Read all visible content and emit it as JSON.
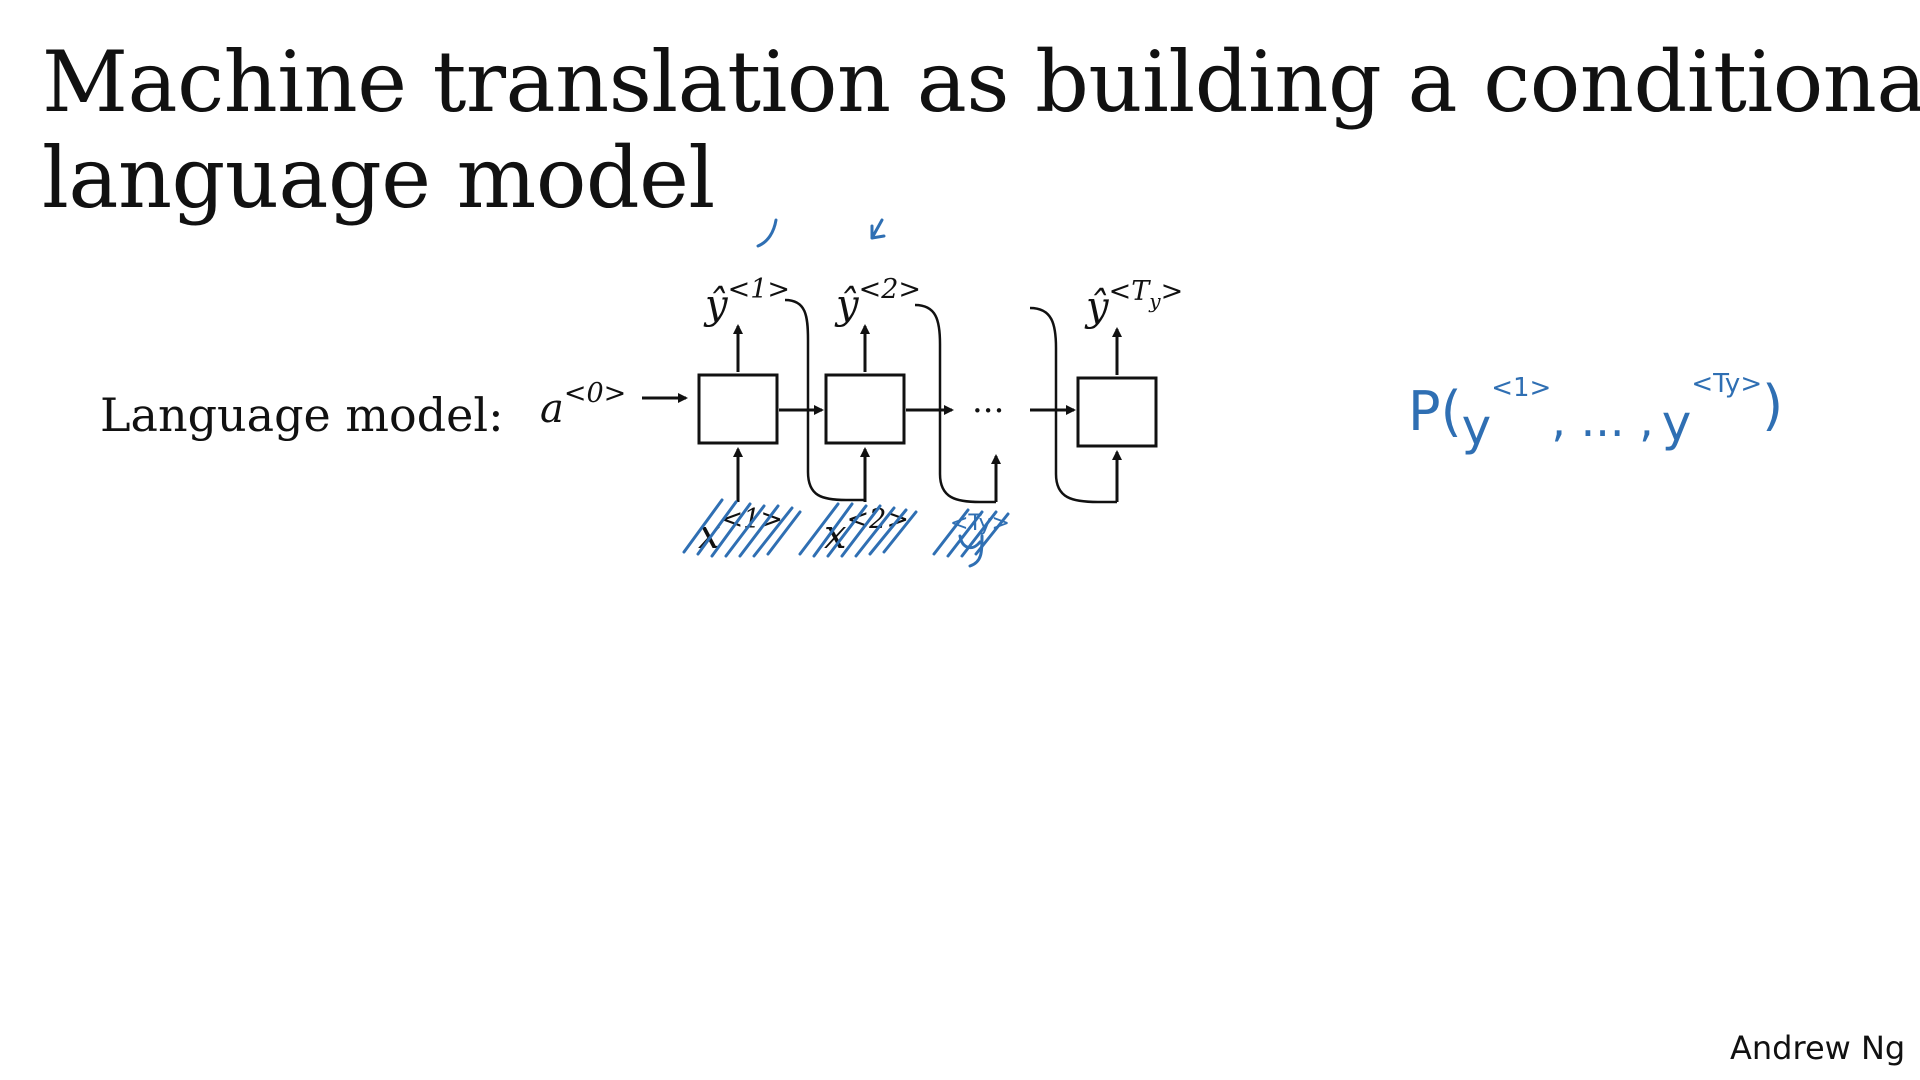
{
  "slide": {
    "title_line_1": "Machine translation as building a conditional",
    "title_line_2": "language model",
    "row_label": "Language model:",
    "author": "Andrew Ng"
  },
  "diagram": {
    "initial_activation": {
      "base": "a",
      "superscript": "<0>"
    },
    "ellipsis": "···",
    "outputs": [
      {
        "base": "ŷ",
        "superscript": "<1>"
      },
      {
        "base": "ŷ",
        "superscript": "<2>"
      },
      {
        "base": "ŷ",
        "superscript": "<T",
        "subscript": "y",
        "superscript_end": ">"
      }
    ],
    "inputs": [
      {
        "base": "x",
        "superscript": "<1>"
      },
      {
        "base": "x",
        "superscript": "<2>"
      }
    ]
  },
  "annotations": {
    "probability": {
      "prefix": "P(",
      "var_1": "y",
      "sup_1": "<1>",
      "separator": ", ... ,",
      "var_2": "y",
      "sup_2": "<Ty>",
      "suffix": ")"
    },
    "crossed_input_3": "<Ty>",
    "ink_color": "#2f6fb3"
  }
}
